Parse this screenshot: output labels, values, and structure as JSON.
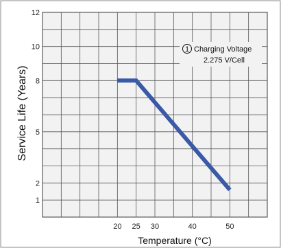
{
  "chart_data": {
    "type": "line",
    "title": "",
    "xlabel": "Temperature (°C)",
    "ylabel": "Service Life (Years)",
    "xlim": [
      0,
      60
    ],
    "ylim": [
      0,
      12
    ],
    "x_ticks": [
      20,
      25,
      30,
      40,
      50
    ],
    "y_ticks": [
      1,
      2,
      5,
      8,
      10,
      12
    ],
    "grid": true,
    "background_color": "#f2f2f2",
    "line_color": "#3a59a6",
    "series": [
      {
        "x": [
          20,
          25,
          50
        ],
        "y": [
          8,
          8,
          1.6
        ]
      }
    ],
    "annotations": [
      {
        "marker": "1",
        "lines": [
          "Charging Voltage",
          "2.275 V/Cell"
        ]
      }
    ]
  }
}
